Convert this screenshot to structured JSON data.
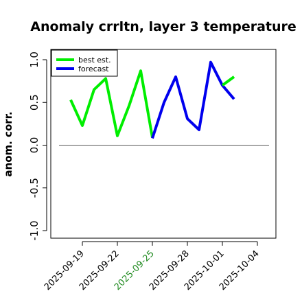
{
  "chart_data": {
    "type": "line",
    "title": "Anomaly crrltn, layer 3 temperature",
    "ylabel": "anom. corr.",
    "xlabel": "",
    "ylim": [
      -1.0,
      1.0
    ],
    "y_ticks": [
      "-1.0",
      "-0.5",
      "0.0",
      "0.5",
      "1.0"
    ],
    "x_ticks": [
      {
        "label": "2025-09-19",
        "color": "#000000"
      },
      {
        "label": "2025-09-22",
        "color": "#000000"
      },
      {
        "label": "2025-09-25",
        "color": "#228B22"
      },
      {
        "label": "2025-09-28",
        "color": "#000000"
      },
      {
        "label": "2025-10-01",
        "color": "#000000"
      },
      {
        "label": "2025-10-04",
        "color": "#000000"
      }
    ],
    "reference_line": 0.0,
    "legend_position": "top-left",
    "series": [
      {
        "name": "best est.",
        "color": "#00ee00",
        "x": [
          "2025-09-18",
          "2025-09-19",
          "2025-09-20",
          "2025-09-21",
          "2025-09-22",
          "2025-09-23",
          "2025-09-24",
          "2025-09-25"
        ],
        "values": [
          0.53,
          0.23,
          0.65,
          0.78,
          0.11,
          0.46,
          0.87,
          0.09
        ]
      },
      {
        "name": "forecast",
        "color": "#0000ee",
        "x": [
          "2025-09-25",
          "2025-09-26",
          "2025-09-27",
          "2025-09-28",
          "2025-09-29",
          "2025-09-30",
          "2025-10-01",
          "2025-10-02"
        ],
        "values": [
          0.08,
          0.5,
          0.8,
          0.31,
          0.18,
          0.97,
          0.7,
          0.54
        ]
      },
      {
        "name": "",
        "color": "#00ee00",
        "x": [
          "2025-10-01",
          "2025-10-02"
        ],
        "values": [
          0.7,
          0.8
        ]
      }
    ]
  }
}
